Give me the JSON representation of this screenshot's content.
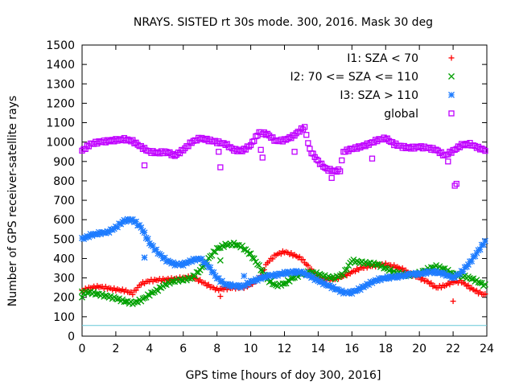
{
  "chart_data": {
    "type": "scatter",
    "title": "NRAYS. SISTED rt 30s mode. 300, 2016. Mask 30 deg",
    "xlabel": "GPS time [hours of doy 300, 2016]",
    "ylabel": "Number of GPS receiver-satellite rays",
    "xlim": [
      0,
      24
    ],
    "ylim": [
      0,
      1500
    ],
    "xticks": [
      "0",
      "2",
      "4",
      "6",
      "8",
      "10",
      "12",
      "14",
      "16",
      "18",
      "20",
      "22",
      "24"
    ],
    "yticks": [
      "0",
      "100",
      "200",
      "300",
      "400",
      "500",
      "600",
      "700",
      "800",
      "900",
      "1000",
      "1100",
      "1200",
      "1300",
      "1400",
      "1500"
    ],
    "reference_line": {
      "y": 55,
      "color": "#66c8d8"
    },
    "series": [
      {
        "name": "I1: SZA < 70",
        "marker": "+",
        "color": "#ff0000",
        "points": [
          [
            0,
            235
          ],
          [
            0.5,
            250
          ],
          [
            1,
            255
          ],
          [
            1.5,
            248
          ],
          [
            2,
            240
          ],
          [
            2.5,
            235
          ],
          [
            3,
            220
          ],
          [
            3.5,
            270
          ],
          [
            4,
            285
          ],
          [
            4.5,
            290
          ],
          [
            5,
            292
          ],
          [
            5.5,
            295
          ],
          [
            6,
            300
          ],
          [
            6.5,
            305
          ],
          [
            7,
            285
          ],
          [
            7.5,
            260
          ],
          [
            8,
            240
          ],
          [
            8.5,
            245
          ],
          [
            9,
            250
          ],
          [
            9.5,
            250
          ],
          [
            10,
            265
          ],
          [
            10.5,
            300
          ],
          [
            11,
            380
          ],
          [
            11.5,
            420
          ],
          [
            12,
            435
          ],
          [
            12.5,
            420
          ],
          [
            13,
            400
          ],
          [
            13.5,
            350
          ],
          [
            14,
            300
          ],
          [
            14.5,
            290
          ],
          [
            15,
            295
          ],
          [
            15.5,
            310
          ],
          [
            16,
            330
          ],
          [
            16.5,
            350
          ],
          [
            17,
            360
          ],
          [
            17.5,
            365
          ],
          [
            18,
            370
          ],
          [
            18.5,
            360
          ],
          [
            19,
            345
          ],
          [
            19.5,
            320
          ],
          [
            20,
            300
          ],
          [
            20.5,
            280
          ],
          [
            21,
            250
          ],
          [
            21.5,
            260
          ],
          [
            22,
            280
          ],
          [
            22.5,
            280
          ],
          [
            23,
            250
          ],
          [
            23.5,
            225
          ],
          [
            24,
            210
          ],
          [
            8.2,
            205
          ],
          [
            22,
            180
          ]
        ]
      },
      {
        "name": "I2: 70 <= SZA <= 110",
        "marker": "x",
        "color": "#00a000",
        "points": [
          [
            0,
            225
          ],
          [
            0.5,
            225
          ],
          [
            1,
            215
          ],
          [
            1.5,
            205
          ],
          [
            2,
            195
          ],
          [
            2.5,
            180
          ],
          [
            3,
            170
          ],
          [
            3.5,
            185
          ],
          [
            4,
            215
          ],
          [
            4.5,
            240
          ],
          [
            5,
            270
          ],
          [
            5.5,
            285
          ],
          [
            6,
            290
          ],
          [
            6.5,
            300
          ],
          [
            7,
            340
          ],
          [
            7.5,
            400
          ],
          [
            8,
            450
          ],
          [
            8.5,
            470
          ],
          [
            9,
            475
          ],
          [
            9.5,
            460
          ],
          [
            10,
            420
          ],
          [
            10.5,
            360
          ],
          [
            11,
            290
          ],
          [
            11.5,
            260
          ],
          [
            12,
            270
          ],
          [
            12.5,
            300
          ],
          [
            13,
            320
          ],
          [
            13.5,
            330
          ],
          [
            14,
            320
          ],
          [
            14.5,
            305
          ],
          [
            15,
            300
          ],
          [
            15.5,
            320
          ],
          [
            16,
            390
          ],
          [
            16.5,
            380
          ],
          [
            17,
            375
          ],
          [
            17.5,
            370
          ],
          [
            18,
            350
          ],
          [
            18.5,
            330
          ],
          [
            19,
            320
          ],
          [
            19.5,
            315
          ],
          [
            20,
            325
          ],
          [
            20.5,
            345
          ],
          [
            21,
            360
          ],
          [
            21.5,
            345
          ],
          [
            22,
            320
          ],
          [
            22.5,
            310
          ],
          [
            23,
            300
          ],
          [
            23.5,
            280
          ],
          [
            24,
            255
          ],
          [
            8.2,
            390
          ],
          [
            0,
            200
          ]
        ]
      },
      {
        "name": "I3: SZA > 110",
        "marker": "*",
        "color": "#1e7cff",
        "points": [
          [
            0,
            500
          ],
          [
            0.5,
            520
          ],
          [
            1,
            530
          ],
          [
            1.5,
            535
          ],
          [
            2,
            560
          ],
          [
            2.5,
            595
          ],
          [
            3,
            600
          ],
          [
            3.5,
            560
          ],
          [
            4,
            480
          ],
          [
            4.5,
            430
          ],
          [
            5,
            390
          ],
          [
            5.5,
            370
          ],
          [
            6,
            370
          ],
          [
            6.5,
            390
          ],
          [
            7,
            400
          ],
          [
            7.5,
            360
          ],
          [
            8,
            300
          ],
          [
            8.5,
            265
          ],
          [
            9,
            260
          ],
          [
            9.5,
            255
          ],
          [
            10,
            280
          ],
          [
            10.5,
            295
          ],
          [
            11,
            310
          ],
          [
            11.5,
            315
          ],
          [
            12,
            325
          ],
          [
            12.5,
            330
          ],
          [
            13,
            330
          ],
          [
            13.5,
            310
          ],
          [
            14,
            285
          ],
          [
            14.5,
            265
          ],
          [
            15,
            245
          ],
          [
            15.5,
            225
          ],
          [
            16,
            225
          ],
          [
            16.5,
            245
          ],
          [
            17,
            270
          ],
          [
            17.5,
            290
          ],
          [
            18,
            300
          ],
          [
            18.5,
            305
          ],
          [
            19,
            310
          ],
          [
            19.5,
            320
          ],
          [
            20,
            320
          ],
          [
            20.5,
            330
          ],
          [
            21,
            330
          ],
          [
            21.5,
            320
          ],
          [
            22,
            300
          ],
          [
            22.5,
            330
          ],
          [
            23,
            380
          ],
          [
            23.5,
            440
          ],
          [
            24,
            500
          ],
          [
            3.7,
            405
          ],
          [
            9.6,
            310
          ]
        ]
      },
      {
        "name": "global",
        "marker": "square",
        "color": "#c000ff",
        "points": [
          [
            0,
            955
          ],
          [
            0.5,
            990
          ],
          [
            1,
            1000
          ],
          [
            1.5,
            1005
          ],
          [
            2,
            1010
          ],
          [
            2.5,
            1015
          ],
          [
            3,
            1005
          ],
          [
            3.5,
            975
          ],
          [
            4,
            950
          ],
          [
            4.5,
            945
          ],
          [
            5,
            950
          ],
          [
            5.5,
            930
          ],
          [
            6,
            960
          ],
          [
            6.5,
            1000
          ],
          [
            7,
            1020
          ],
          [
            7.5,
            1010
          ],
          [
            8,
            1000
          ],
          [
            8.5,
            990
          ],
          [
            9,
            960
          ],
          [
            9.5,
            955
          ],
          [
            10,
            985
          ],
          [
            10.5,
            1050
          ],
          [
            11,
            1040
          ],
          [
            11.5,
            1005
          ],
          [
            12,
            1010
          ],
          [
            12.5,
            1030
          ],
          [
            13,
            1065
          ],
          [
            13.2,
            1075
          ],
          [
            13.5,
            960
          ],
          [
            14,
            900
          ],
          [
            14.5,
            860
          ],
          [
            15,
            850
          ],
          [
            15.3,
            855
          ],
          [
            15.5,
            950
          ],
          [
            16,
            965
          ],
          [
            16.5,
            975
          ],
          [
            17,
            990
          ],
          [
            17.5,
            1010
          ],
          [
            18,
            1020
          ],
          [
            18.5,
            990
          ],
          [
            19,
            975
          ],
          [
            19.5,
            970
          ],
          [
            20,
            975
          ],
          [
            20.5,
            970
          ],
          [
            21,
            960
          ],
          [
            21.5,
            930
          ],
          [
            22,
            955
          ],
          [
            22.5,
            985
          ],
          [
            23,
            990
          ],
          [
            23.5,
            970
          ],
          [
            24,
            955
          ],
          [
            3.7,
            880
          ],
          [
            8.2,
            870
          ],
          [
            8.1,
            950
          ],
          [
            10.7,
            920
          ],
          [
            10.6,
            960
          ],
          [
            12.6,
            950
          ],
          [
            14.8,
            815
          ],
          [
            17.2,
            915
          ],
          [
            21.7,
            900
          ],
          [
            22.1,
            775
          ],
          [
            22.2,
            785
          ]
        ]
      }
    ]
  }
}
